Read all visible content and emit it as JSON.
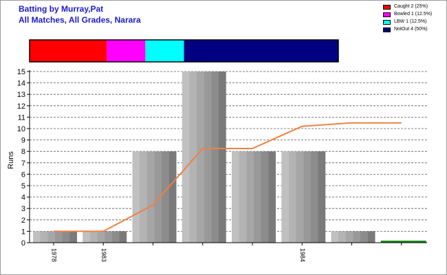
{
  "header": {
    "title": "Batting by Murray,Pat",
    "subtitle": "All Matches, All Grades, Narara"
  },
  "legend": [
    {
      "label": "Caught 2 (25%)",
      "color": "#ff0000"
    },
    {
      "label": "Bowled 1 (12.5%)",
      "color": "#ff00ff"
    },
    {
      "label": "LBW 1 (12.5%)",
      "color": "#00ffff"
    },
    {
      "label": "NotOut 4 (50%)",
      "color": "#000080"
    }
  ],
  "chart_data": [
    {
      "type": "bar",
      "title": "",
      "series": [
        {
          "name": "Caught",
          "values": [
            2
          ],
          "color": "#ff0000"
        },
        {
          "name": "Bowled",
          "values": [
            1
          ],
          "color": "#ff00ff"
        },
        {
          "name": "LBW",
          "values": [
            1
          ],
          "color": "#00ffff"
        },
        {
          "name": "NotOut",
          "values": [
            4
          ],
          "color": "#000080"
        }
      ]
    },
    {
      "type": "bar",
      "title": "",
      "xlabel": "",
      "ylabel": "Runs",
      "ylim": [
        0,
        15
      ],
      "yticks": [
        0,
        1,
        2,
        3,
        4,
        5,
        6,
        7,
        8,
        9,
        10,
        11,
        12,
        13,
        14,
        15
      ],
      "grid": true,
      "xtick_labels": [
        "1978",
        "1983",
        "",
        "",
        "",
        "1984",
        "",
        ""
      ],
      "innings": [
        {
          "runs": 1,
          "color": "gray"
        },
        {
          "runs": 1,
          "color": "gray"
        },
        {
          "runs": 8,
          "color": "gray"
        },
        {
          "runs": 15,
          "color": "gray"
        },
        {
          "runs": 8,
          "color": "gray"
        },
        {
          "runs": 8,
          "color": "gray"
        },
        {
          "runs": 1,
          "color": "gray"
        },
        {
          "runs": 0,
          "color": "green"
        }
      ],
      "average_line": {
        "color": "#f08040",
        "values": [
          1,
          1,
          3.3,
          8.25,
          8.25,
          10.2,
          10.5,
          10.5
        ]
      }
    }
  ]
}
